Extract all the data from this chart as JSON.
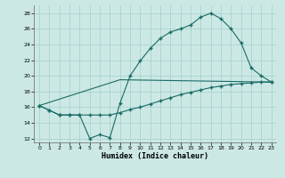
{
  "xlabel": "Humidex (Indice chaleur)",
  "bg_color": "#cce8e5",
  "grid_color": "#a8d4cf",
  "line_color": "#1a6b65",
  "xlim": [
    -0.5,
    23.5
  ],
  "ylim": [
    11.5,
    29
  ],
  "yticks": [
    12,
    14,
    16,
    18,
    20,
    22,
    24,
    26,
    28
  ],
  "xticks": [
    0,
    1,
    2,
    3,
    4,
    5,
    6,
    7,
    8,
    9,
    10,
    11,
    12,
    13,
    14,
    15,
    16,
    17,
    18,
    19,
    20,
    21,
    22,
    23
  ],
  "line1_x": [
    0,
    1,
    2,
    3,
    4,
    5,
    6,
    7,
    8,
    9,
    10,
    11,
    12,
    13,
    14,
    15,
    16,
    17,
    18,
    19,
    20,
    21,
    22,
    23
  ],
  "line1_y": [
    16.2,
    15.6,
    15.0,
    15.0,
    15.0,
    12.0,
    12.5,
    12.1,
    16.5,
    20.0,
    21.9,
    23.5,
    24.8,
    25.6,
    26.0,
    26.5,
    27.5,
    28.0,
    27.3,
    26.0,
    24.2,
    21.0,
    20.0,
    19.2
  ],
  "line2_x": [
    0,
    8,
    23
  ],
  "line2_y": [
    16.2,
    19.5,
    19.2
  ],
  "line3_x": [
    0,
    1,
    2,
    3,
    4,
    5,
    6,
    7,
    8,
    9,
    10,
    11,
    12,
    13,
    14,
    15,
    16,
    17,
    18,
    19,
    20,
    21,
    22,
    23
  ],
  "line3_y": [
    16.2,
    15.6,
    15.0,
    15.0,
    15.0,
    15.0,
    15.0,
    15.0,
    15.3,
    15.7,
    16.0,
    16.4,
    16.8,
    17.2,
    17.6,
    17.9,
    18.2,
    18.5,
    18.7,
    18.9,
    19.0,
    19.1,
    19.2,
    19.2
  ]
}
